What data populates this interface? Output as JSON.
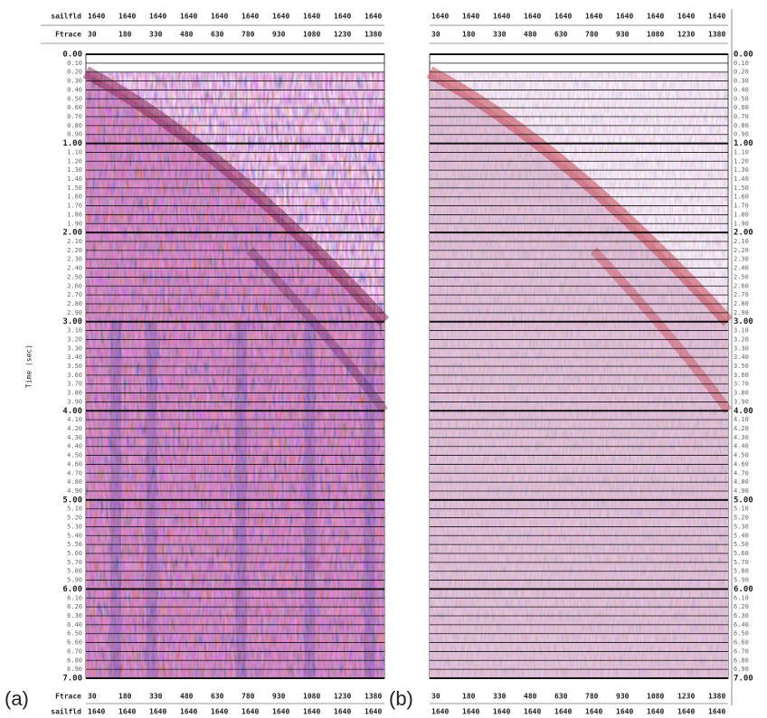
{
  "axis_label": "Time (sec)",
  "row_labels": {
    "shot": "sailfld",
    "trace": "Ftrace"
  },
  "shot_numbers": [
    "1640",
    "1640",
    "1640",
    "1640",
    "1640",
    "1640",
    "1640",
    "1640",
    "1640",
    "1640"
  ],
  "trace_numbers": [
    "30",
    "180",
    "330",
    "480",
    "630",
    "780",
    "930",
    "1080",
    "1230",
    "1380"
  ],
  "time_ticks": [
    "0.00",
    "0.10",
    "0.20",
    "0.30",
    "0.40",
    "0.50",
    "0.60",
    "0.70",
    "0.80",
    "0.90",
    "1.00",
    "1.10",
    "1.20",
    "1.30",
    "1.40",
    "1.50",
    "1.60",
    "1.70",
    "1.80",
    "1.90",
    "2.00",
    "2.10",
    "2.20",
    "2.30",
    "2.40",
    "2.50",
    "2.60",
    "2.70",
    "2.80",
    "2.90",
    "3.00",
    "3.10",
    "3.20",
    "3.30",
    "3.40",
    "3.50",
    "3.60",
    "3.70",
    "3.80",
    "3.90",
    "4.00",
    "4.10",
    "4.20",
    "4.30",
    "4.40",
    "4.50",
    "4.60",
    "4.70",
    "4.80",
    "4.90",
    "5.00",
    "5.10",
    "5.20",
    "5.30",
    "5.40",
    "5.50",
    "5.60",
    "5.70",
    "5.80",
    "5.90",
    "6.00",
    "6.10",
    "6.20",
    "6.30",
    "6.40",
    "6.50",
    "6.60",
    "6.70",
    "6.80",
    "6.90",
    "7.00"
  ],
  "panels": [
    {
      "label": "(a)"
    },
    {
      "label": "(b)"
    }
  ]
}
